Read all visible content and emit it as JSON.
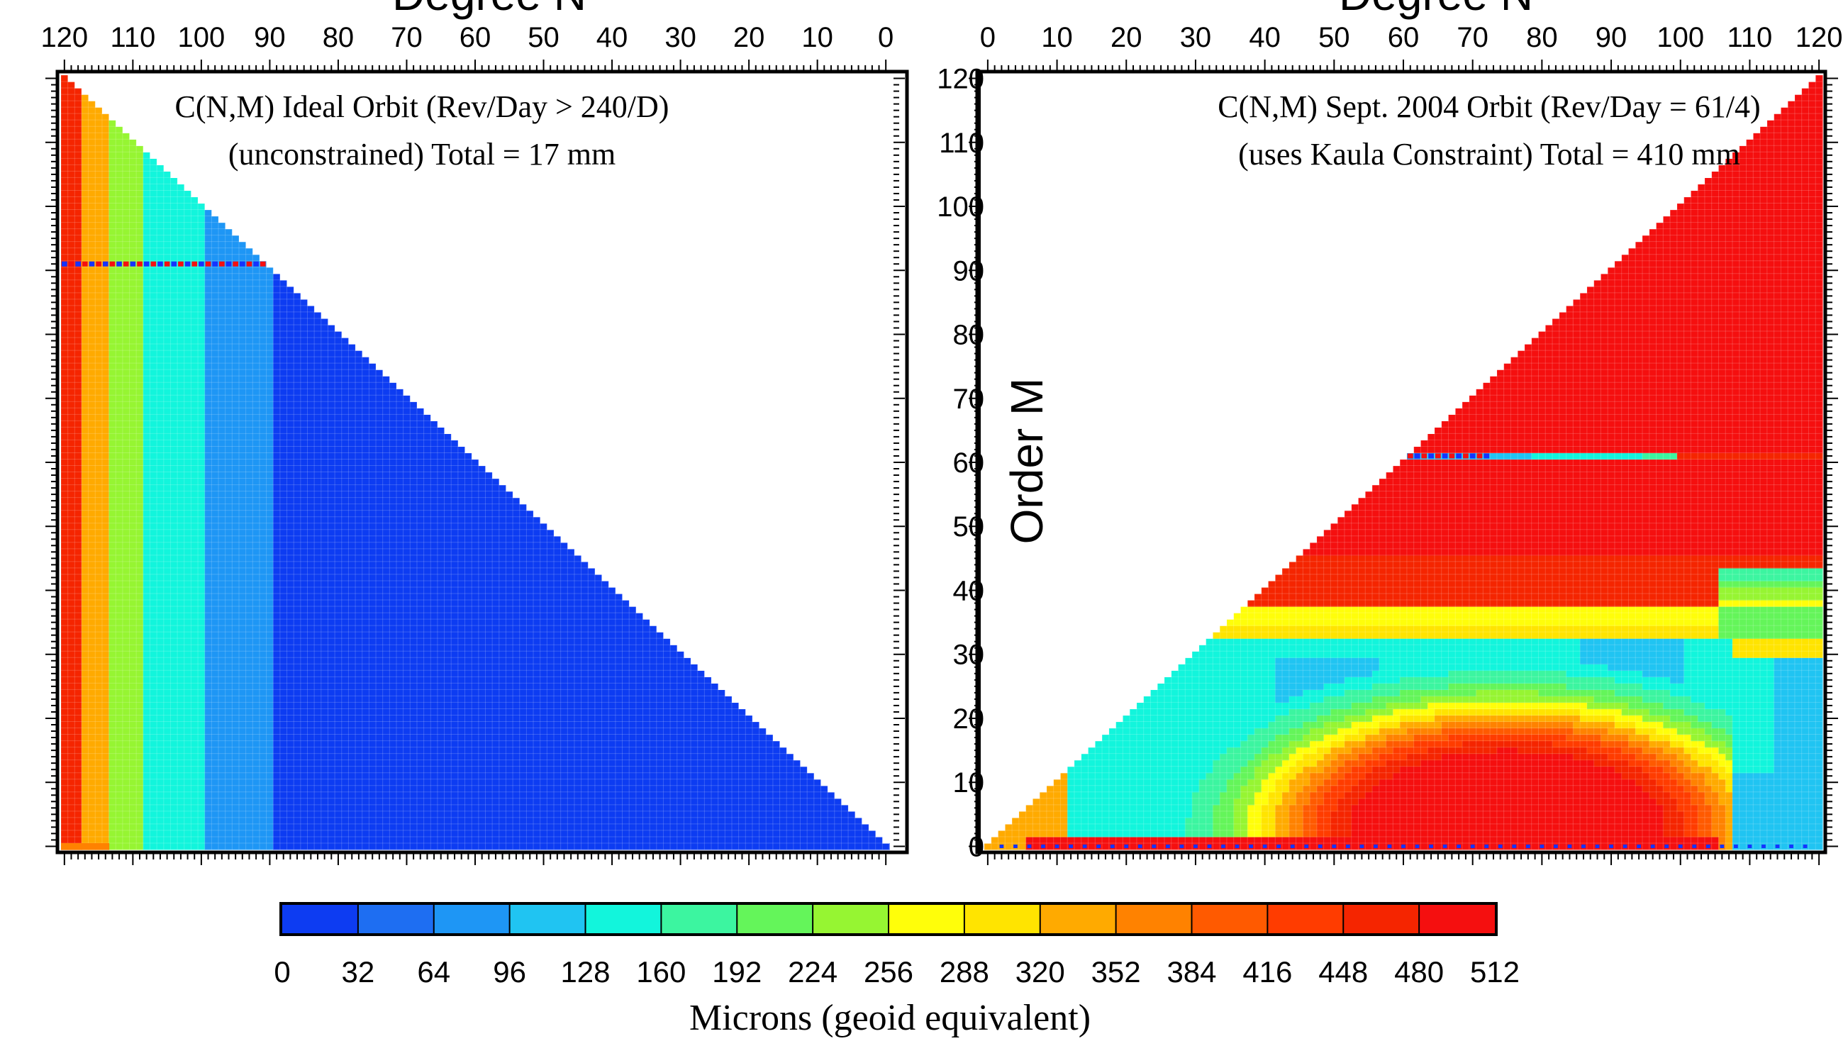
{
  "chart_data": [
    {
      "type": "heatmap",
      "name": "ideal-orbit",
      "top_axis_title": "Degree N",
      "title": "C(N,M) Ideal Orbit (Rev/Day > 240/D)",
      "subtitle": "(unconstrained) Total = 17 mm",
      "x_ticks": [
        "120",
        "110",
        "100",
        "90",
        "80",
        "70",
        "60",
        "50",
        "40",
        "30",
        "20",
        "10",
        "0"
      ],
      "x_range": [
        120,
        0
      ],
      "y_range": [
        0,
        120
      ],
      "x_axis": "degree N (reversed, 120 at left)",
      "y_axis": "order M",
      "mask": "M <= N",
      "banded_row": 91,
      "bands_by_degree": [
        {
          "from_N": 0,
          "to_N": 89,
          "value": 16
        },
        {
          "from_N": 90,
          "to_N": 99,
          "value": 80
        },
        {
          "from_N": 100,
          "to_N": 108,
          "value": 140
        },
        {
          "from_N": 109,
          "to_N": 113,
          "value": 250
        },
        {
          "from_N": 114,
          "to_N": 117,
          "value": 330
        },
        {
          "from_N": 118,
          "to_N": 120,
          "value": 470
        }
      ]
    },
    {
      "type": "heatmap",
      "name": "sept-2004-orbit",
      "top_axis_title": "Degree N",
      "title": "C(N,M) Sept. 2004 Orbit (Rev/Day = 61/4)",
      "subtitle": "(uses Kaula Constraint)  Total = 410 mm",
      "y_axis_title": "Order M",
      "x_ticks": [
        "0",
        "10",
        "20",
        "30",
        "40",
        "50",
        "60",
        "70",
        "80",
        "90",
        "100",
        "110",
        "120"
      ],
      "y_ticks": [
        "0",
        "10",
        "20",
        "30",
        "40",
        "50",
        "60",
        "70",
        "80",
        "90",
        "100",
        "110",
        "120"
      ],
      "x_range": [
        0,
        120
      ],
      "y_range": [
        0,
        120
      ],
      "mask": "M <= N",
      "banded_row": 61,
      "regions": [
        {
          "description": "M > 45",
          "value": 500
        },
        {
          "description": "resonance row M = 61",
          "value": 180
        },
        {
          "description": "band M 30-44",
          "value": 270
        },
        {
          "description": "middle M 10-29",
          "value": 150
        },
        {
          "description": "arch centered N 75, M 5-20",
          "value": 470
        },
        {
          "description": "right side N 105-120",
          "value": 150
        }
      ]
    }
  ],
  "colorbar": {
    "label": "Microns (geoid equivalent)",
    "ticks": [
      "0",
      "32",
      "64",
      "96",
      "128",
      "160",
      "192",
      "224",
      "256",
      "288",
      "320",
      "352",
      "384",
      "416",
      "448",
      "480",
      "512"
    ],
    "colors": [
      "#0d3cf2",
      "#1e6ef2",
      "#1e96f5",
      "#20c4f2",
      "#12f5dc",
      "#3cf5a0",
      "#64f55a",
      "#96f532",
      "#fffe0a",
      "#ffe400",
      "#ffaa00",
      "#ff8200",
      "#ff5a00",
      "#ff3c00",
      "#f52500",
      "#f50f0f"
    ]
  }
}
